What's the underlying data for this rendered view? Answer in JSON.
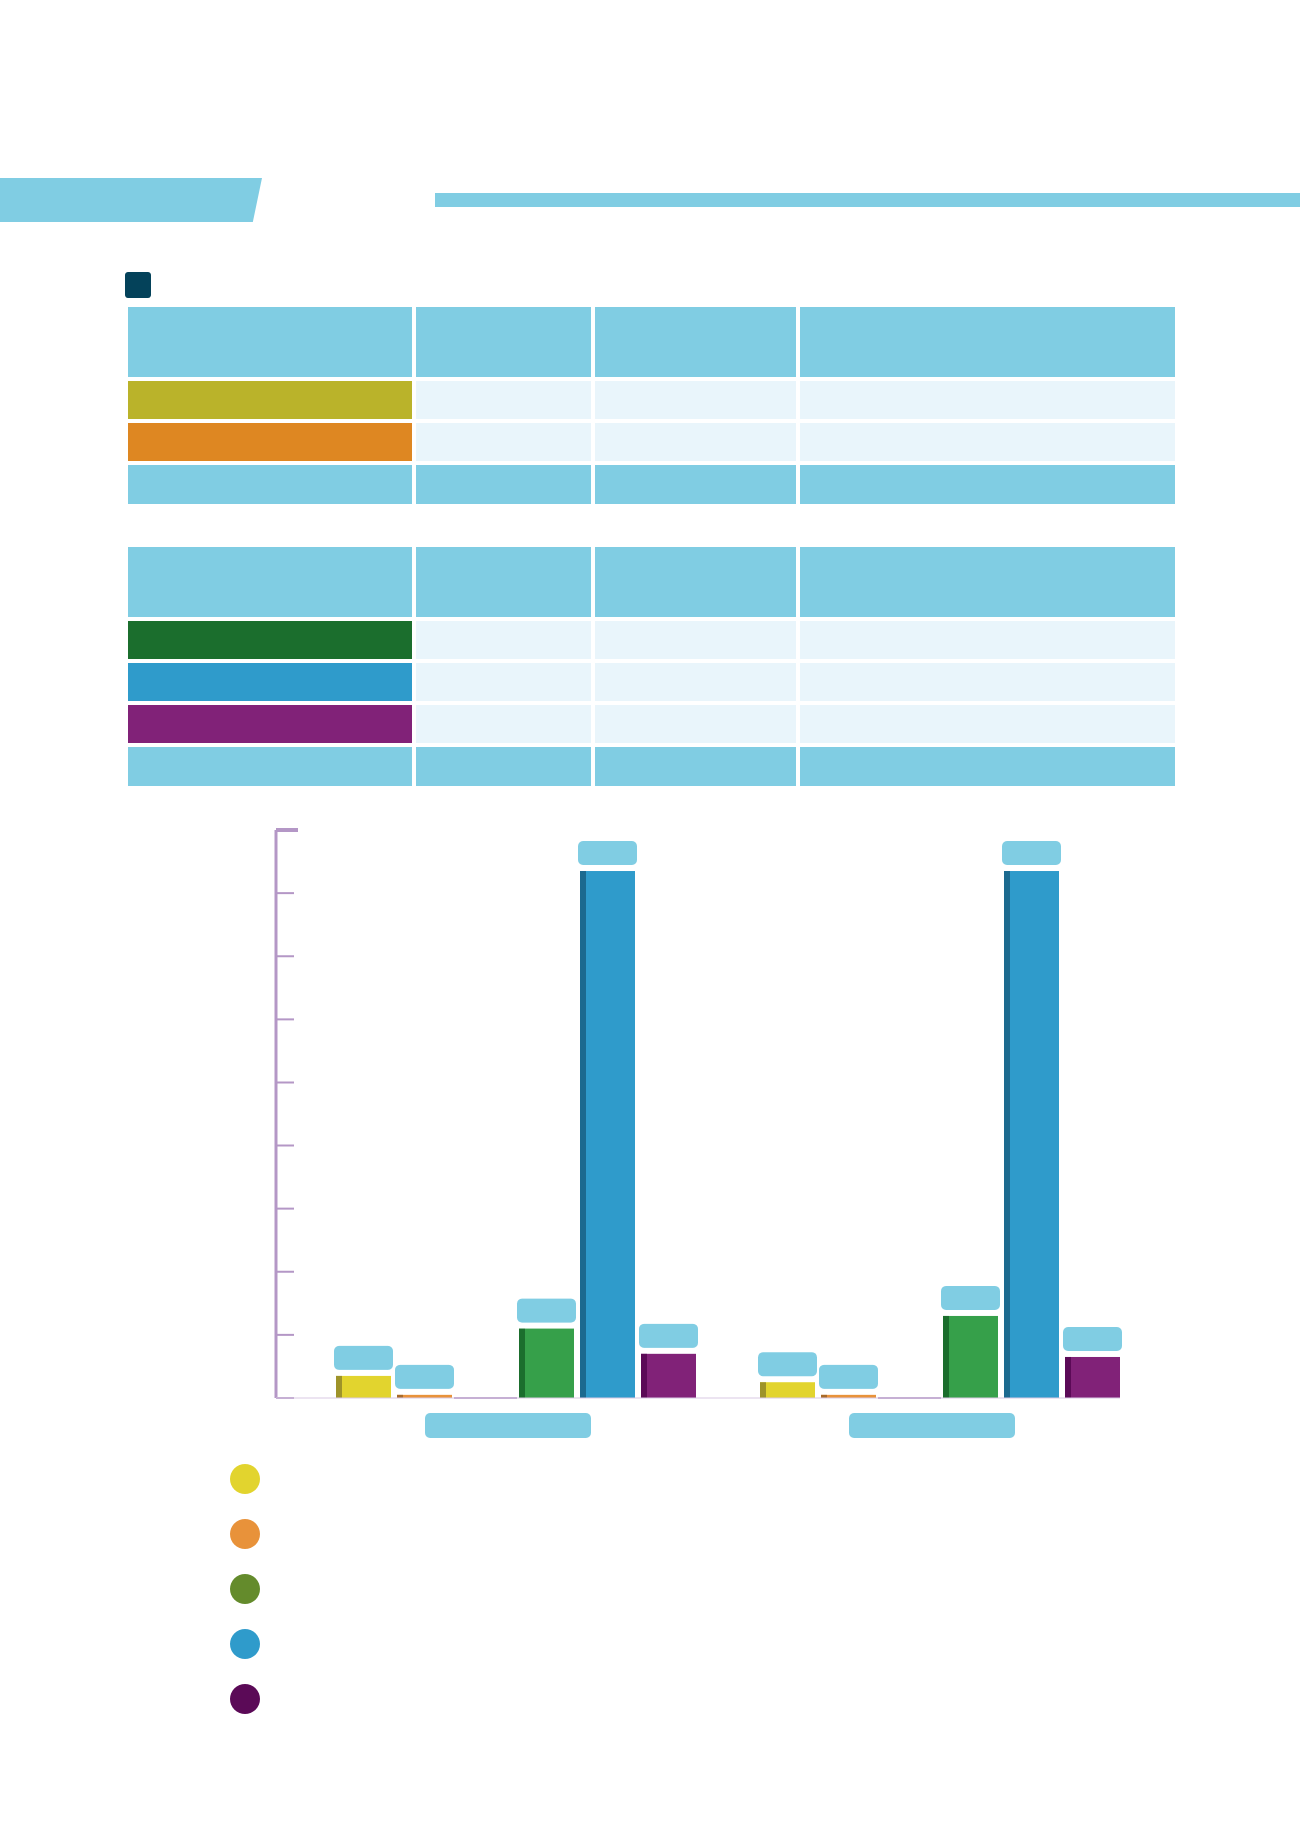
{
  "theme": {
    "accent": "#80cde3",
    "header_marker": "#04425a",
    "cell_fill": "#e9f5fb",
    "axis": "#b497c6"
  },
  "table_top": {
    "header": [
      "",
      "",
      "",
      ""
    ],
    "rows": [
      {
        "color": "#bab32a",
        "cells": [
          "",
          "",
          ""
        ]
      },
      {
        "color": "#de8722",
        "cells": [
          "",
          "",
          ""
        ]
      }
    ],
    "total": [
      "",
      "",
      "",
      ""
    ]
  },
  "table_bottom": {
    "header": [
      "",
      "",
      "",
      ""
    ],
    "rows": [
      {
        "color": "#1b6e2d",
        "cells": [
          "",
          "",
          ""
        ]
      },
      {
        "color": "#2f9bcb",
        "cells": [
          "",
          "",
          ""
        ]
      },
      {
        "color": "#812278",
        "cells": [
          "",
          "",
          ""
        ]
      }
    ],
    "total": [
      "",
      "",
      "",
      ""
    ]
  },
  "chart_data": {
    "type": "bar",
    "title": "",
    "xlabel": "",
    "ylabel": "",
    "ylim": [
      0,
      9
    ],
    "y_ticks": [
      0,
      1,
      2,
      3,
      4,
      5,
      6,
      7,
      8,
      9
    ],
    "categories": [
      "",
      ""
    ],
    "series": [
      {
        "color": "#e2d42e",
        "shade": "#9e9329",
        "values": [
          0.35,
          0.25
        ]
      },
      {
        "color": "#e8923a",
        "shade": "#a86a2a",
        "values": [
          0.05,
          0.05
        ]
      },
      {
        "color": "#648b2c",
        "shade": "#648b2c",
        "values": [
          0,
          0
        ]
      },
      {
        "color": "#36a04a",
        "shade": "#1b6e2d",
        "values": [
          1.1,
          1.3
        ]
      },
      {
        "color": "#2f9bcb",
        "shade": "#1c6a8f",
        "values": [
          8.35,
          8.35
        ]
      },
      {
        "color": "#812278",
        "shade": "#5b0a57",
        "values": [
          0.7,
          0.65
        ]
      }
    ],
    "legend": {
      "position": "bottom-left",
      "entries": [
        {
          "color": "#e2d42e",
          "label": ""
        },
        {
          "color": "#e8923a",
          "label": ""
        },
        {
          "color": "#648b2c",
          "label": ""
        },
        {
          "color": "#2f9bcb",
          "label": ""
        },
        {
          "color": "#5b0a57",
          "label": ""
        }
      ]
    },
    "grid": false
  }
}
